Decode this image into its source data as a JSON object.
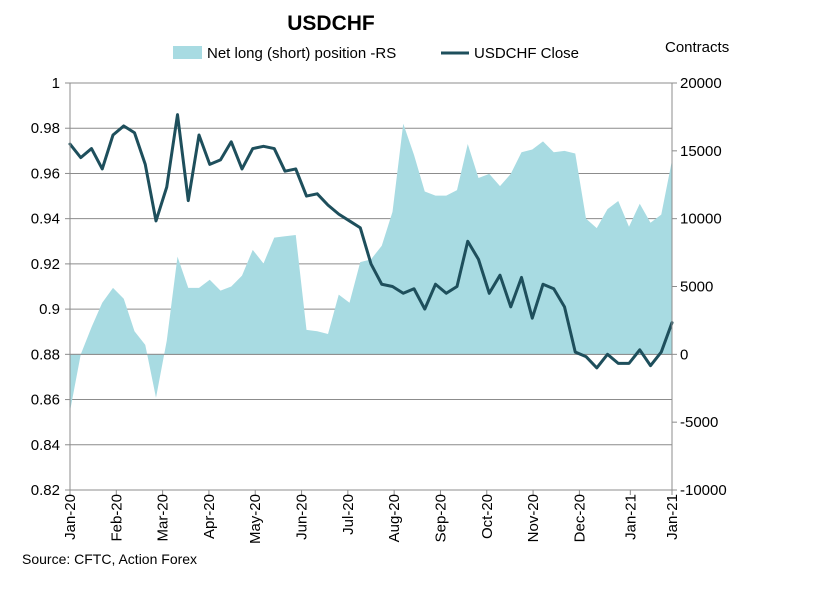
{
  "chart_data": {
    "type": "line+area",
    "title": "USDCHF",
    "right_axis_title": "Contracts",
    "source": "Source: CFTC, Action Forex",
    "left_axis": {
      "min": 0.82,
      "max": 1.0,
      "step": 0.02,
      "ticks": [
        "1",
        "0.98",
        "0.96",
        "0.94",
        "0.92",
        "0.9",
        "0.88",
        "0.86",
        "0.84",
        "0.82"
      ]
    },
    "right_axis": {
      "min": -10000,
      "max": 20000,
      "step": 5000,
      "ticks": [
        "20000",
        "15000",
        "10000",
        "5000",
        "0",
        "-5000",
        "-10000"
      ]
    },
    "x_labels": [
      "Jan-20",
      "Feb-20",
      "Mar-20",
      "Apr-20",
      "May-20",
      "Jun-20",
      "Jul-20",
      "Aug-20",
      "Sep-20",
      "Oct-20",
      "Nov-20",
      "Dec-20",
      "Jan-21",
      "Jan-21"
    ],
    "legend": [
      {
        "name": "Net long (short) position -RS",
        "kind": "area",
        "color": "#a8dbe2"
      },
      {
        "name": "USDCHF Close",
        "kind": "line",
        "color": "#1e4f5c"
      }
    ],
    "series": [
      {
        "name": "Net long (short) position -RS",
        "axis": "right",
        "values": [
          -4200,
          0,
          2000,
          3800,
          4900,
          4100,
          1700,
          700,
          -3200,
          1000,
          7200,
          4900,
          4900,
          5500,
          4700,
          5000,
          5800,
          7700,
          6700,
          8600,
          8700,
          8800,
          1800,
          1700,
          1500,
          4400,
          3800,
          6800,
          7000,
          8000,
          10500,
          17000,
          14700,
          12000,
          11700,
          11700,
          12100,
          15500,
          13000,
          13300,
          12400,
          13300,
          14900,
          15100,
          15700,
          14900,
          15000,
          14800,
          10000,
          9300,
          10700,
          11300,
          9400,
          11100,
          9700,
          10300,
          14300
        ]
      },
      {
        "name": "USDCHF Close",
        "axis": "left",
        "values": [
          0.973,
          0.967,
          0.971,
          0.962,
          0.977,
          0.981,
          0.978,
          0.964,
          0.939,
          0.954,
          0.986,
          0.948,
          0.977,
          0.964,
          0.966,
          0.974,
          0.962,
          0.971,
          0.972,
          0.971,
          0.961,
          0.962,
          0.95,
          0.951,
          0.946,
          0.942,
          0.939,
          0.936,
          0.92,
          0.911,
          0.91,
          0.907,
          0.909,
          0.9,
          0.911,
          0.907,
          0.91,
          0.93,
          0.922,
          0.907,
          0.915,
          0.901,
          0.914,
          0.896,
          0.911,
          0.909,
          0.901,
          0.881,
          0.879,
          0.874,
          0.88,
          0.876,
          0.876,
          0.882,
          0.875,
          0.881,
          0.894
        ]
      }
    ]
  }
}
